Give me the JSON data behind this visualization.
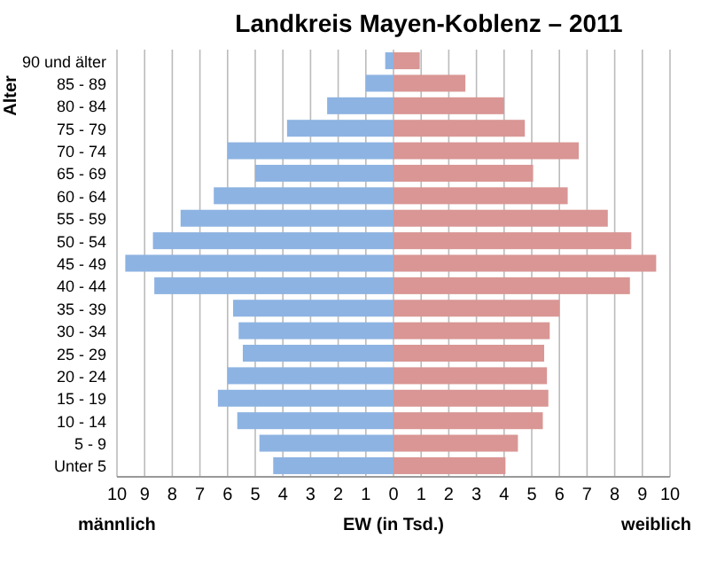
{
  "chart_data": {
    "type": "bar",
    "orientation": "horizontal",
    "stacked": true,
    "title": "Landkreis Mayen-Koblenz – 2011",
    "xlabel": "EW (in Tsd.)",
    "ylabel": "Alter",
    "categories": [
      "90 und älter",
      "85 - 89",
      "80 - 84",
      "75 - 79",
      "70 - 74",
      "65 - 69",
      "60 - 64",
      "55 - 59",
      "50 - 54",
      "45 - 49",
      "40 - 44",
      "35 - 39",
      "30 - 34",
      "25 - 29",
      "20 - 24",
      "15 - 19",
      "10 - 14",
      "5 - 9",
      "Unter 5"
    ],
    "series": [
      {
        "color": "#8db3e2",
        "values": [
          -0.3,
          -1.0,
          -2.4,
          -3.85,
          -6.0,
          -5.0,
          -6.5,
          -7.7,
          -8.7,
          -9.7,
          -8.65,
          -5.8,
          -5.6,
          -5.45,
          -6.0,
          -6.35,
          -5.65,
          -4.85,
          -4.35
        ]
      },
      {
        "color": "#d99694",
        "values": [
          0.95,
          2.6,
          4.0,
          4.75,
          6.7,
          5.05,
          6.3,
          7.75,
          8.6,
          9.5,
          8.55,
          6.0,
          5.65,
          5.45,
          5.55,
          5.6,
          5.4,
          4.5,
          4.05
        ]
      }
    ],
    "xlim": [
      -10,
      10
    ],
    "xticks": [
      {
        "value": -10,
        "label": "10"
      },
      {
        "value": -9,
        "label": "9"
      },
      {
        "value": -8,
        "label": "8"
      },
      {
        "value": -7,
        "label": "7"
      },
      {
        "value": -6,
        "label": "6"
      },
      {
        "value": -5,
        "label": "5"
      },
      {
        "value": -4,
        "label": "4"
      },
      {
        "value": -3,
        "label": "3"
      },
      {
        "value": -2,
        "label": "2"
      },
      {
        "value": -1,
        "label": "1"
      },
      0,
      1,
      2,
      3,
      4,
      5,
      6,
      7,
      8,
      9,
      10
    ],
    "grid": "x",
    "annotations": [
      "männlich",
      "weiblich"
    ]
  }
}
